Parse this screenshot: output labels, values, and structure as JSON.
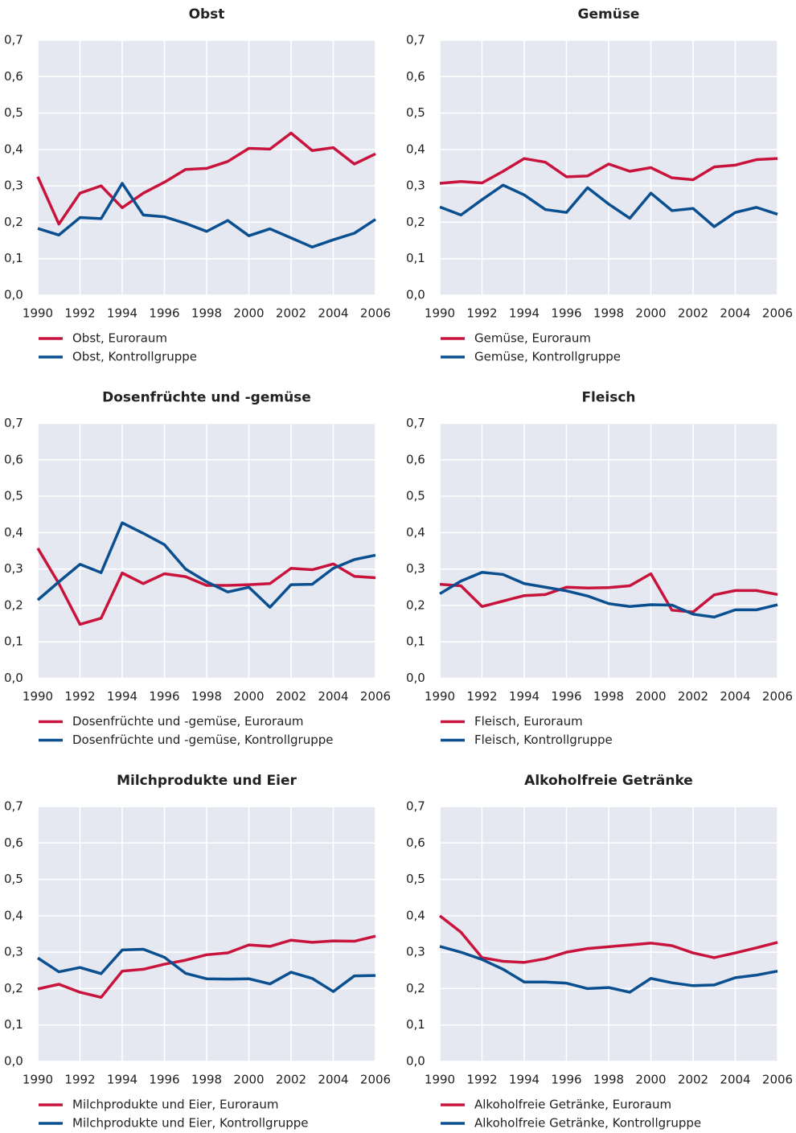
{
  "chart_data": [
    {
      "type": "line",
      "title": "Obst",
      "x": [
        1990,
        1991,
        1992,
        1993,
        1994,
        1995,
        1996,
        1997,
        1998,
        1999,
        2000,
        2001,
        2002,
        2003,
        2004,
        2005,
        2006
      ],
      "xlim": [
        1990,
        2006
      ],
      "xticks": [
        1990,
        1992,
        1994,
        1996,
        1998,
        2000,
        2002,
        2004,
        2006
      ],
      "ylim": [
        0,
        0.7
      ],
      "yticks": [
        {
          "value": 0,
          "label": "0,0"
        },
        {
          "value": 0.1,
          "label": "0,1"
        },
        {
          "value": 0.2,
          "label": "0,2"
        },
        {
          "value": 0.3,
          "label": "0,3"
        },
        {
          "value": 0.4,
          "label": "0,4"
        },
        {
          "value": 0.5,
          "label": "0,5"
        },
        {
          "value": 0.6,
          "label": "0,6"
        },
        {
          "value": 0.7,
          "label": "0,7"
        }
      ],
      "grid": true,
      "series": [
        {
          "name": "Obst, Euroraum",
          "color": "#c8143c",
          "values": [
            0.325,
            0.195,
            0.28,
            0.3,
            0.24,
            0.28,
            0.31,
            0.345,
            0.348,
            0.367,
            0.403,
            0.401,
            0.445,
            0.397,
            0.405,
            0.36,
            0.388
          ]
        },
        {
          "name": "Obst, Kontrollgruppe",
          "color": "#0a4f8f",
          "values": [
            0.183,
            0.165,
            0.213,
            0.21,
            0.307,
            0.22,
            0.215,
            0.197,
            0.175,
            0.205,
            0.163,
            0.182,
            0.157,
            0.132,
            0.152,
            0.17,
            0.208
          ]
        }
      ]
    },
    {
      "type": "line",
      "title": "Gemüse",
      "x": [
        1990,
        1991,
        1992,
        1993,
        1994,
        1995,
        1996,
        1997,
        1998,
        1999,
        2000,
        2001,
        2002,
        2003,
        2004,
        2005,
        2006
      ],
      "xlim": [
        1990,
        2006
      ],
      "xticks": [
        1990,
        1992,
        1994,
        1996,
        1998,
        2000,
        2002,
        2004,
        2006
      ],
      "ylim": [
        0,
        0.7
      ],
      "yticks": [
        {
          "value": 0,
          "label": "0,0"
        },
        {
          "value": 0.1,
          "label": "0,1"
        },
        {
          "value": 0.2,
          "label": "0,2"
        },
        {
          "value": 0.3,
          "label": "0,3"
        },
        {
          "value": 0.4,
          "label": "0,4"
        },
        {
          "value": 0.5,
          "label": "0,5"
        },
        {
          "value": 0.6,
          "label": "0,6"
        },
        {
          "value": 0.7,
          "label": "0,7"
        }
      ],
      "grid": true,
      "series": [
        {
          "name": "Gemüse, Euroraum",
          "color": "#c8143c",
          "values": [
            0.307,
            0.312,
            0.308,
            0.34,
            0.375,
            0.365,
            0.325,
            0.327,
            0.36,
            0.34,
            0.35,
            0.322,
            0.317,
            0.352,
            0.357,
            0.372,
            0.375
          ]
        },
        {
          "name": "Gemüse, Kontrollgruppe",
          "color": "#0a4f8f",
          "values": [
            0.242,
            0.22,
            0.262,
            0.302,
            0.275,
            0.235,
            0.227,
            0.295,
            0.25,
            0.211,
            0.28,
            0.232,
            0.238,
            0.188,
            0.227,
            0.241,
            0.222
          ]
        }
      ]
    },
    {
      "type": "line",
      "title": "Dosenfrüchte und -gemüse",
      "x": [
        1990,
        1991,
        1992,
        1993,
        1994,
        1995,
        1996,
        1997,
        1998,
        1999,
        2000,
        2001,
        2002,
        2003,
        2004,
        2005,
        2006
      ],
      "xlim": [
        1990,
        2006
      ],
      "xticks": [
        1990,
        1992,
        1994,
        1996,
        1998,
        2000,
        2002,
        2004,
        2006
      ],
      "ylim": [
        0,
        0.7
      ],
      "yticks": [
        {
          "value": 0,
          "label": "0,0"
        },
        {
          "value": 0.1,
          "label": "0,1"
        },
        {
          "value": 0.2,
          "label": "0,2"
        },
        {
          "value": 0.3,
          "label": "0,3"
        },
        {
          "value": 0.4,
          "label": "0,4"
        },
        {
          "value": 0.5,
          "label": "0,5"
        },
        {
          "value": 0.6,
          "label": "0,6"
        },
        {
          "value": 0.7,
          "label": "0,7"
        }
      ],
      "grid": true,
      "series": [
        {
          "name": "Dosenfrüchte und -gemüse, Euroraum",
          "color": "#c8143c",
          "values": [
            0.357,
            0.26,
            0.148,
            0.165,
            0.289,
            0.26,
            0.287,
            0.279,
            0.255,
            0.255,
            0.257,
            0.26,
            0.302,
            0.298,
            0.314,
            0.28,
            0.276
          ]
        },
        {
          "name": "Dosenfrüchte und -gemüse, Kontrollgruppe",
          "color": "#0a4f8f",
          "values": [
            0.215,
            0.265,
            0.313,
            0.29,
            0.427,
            0.398,
            0.367,
            0.3,
            0.265,
            0.237,
            0.25,
            0.195,
            0.257,
            0.258,
            0.302,
            0.326,
            0.338
          ]
        }
      ]
    },
    {
      "type": "line",
      "title": "Fleisch",
      "x": [
        1990,
        1991,
        1992,
        1993,
        1994,
        1995,
        1996,
        1997,
        1998,
        1999,
        2000,
        2001,
        2002,
        2003,
        2004,
        2005,
        2006
      ],
      "xlim": [
        1990,
        2006
      ],
      "xticks": [
        1990,
        1992,
        1994,
        1996,
        1998,
        2000,
        2002,
        2004,
        2006
      ],
      "ylim": [
        0,
        0.7
      ],
      "yticks": [
        {
          "value": 0,
          "label": "0,0"
        },
        {
          "value": 0.1,
          "label": "0,1"
        },
        {
          "value": 0.2,
          "label": "0,2"
        },
        {
          "value": 0.3,
          "label": "0,3"
        },
        {
          "value": 0.4,
          "label": "0,4"
        },
        {
          "value": 0.5,
          "label": "0,5"
        },
        {
          "value": 0.6,
          "label": "0,6"
        },
        {
          "value": 0.7,
          "label": "0,7"
        }
      ],
      "grid": true,
      "series": [
        {
          "name": "Fleisch, Euroraum",
          "color": "#c8143c",
          "values": [
            0.258,
            0.254,
            0.197,
            0.212,
            0.227,
            0.23,
            0.25,
            0.248,
            0.249,
            0.254,
            0.287,
            0.187,
            0.182,
            0.229,
            0.241,
            0.241,
            0.23
          ]
        },
        {
          "name": "Fleisch, Kontrollgruppe",
          "color": "#0a4f8f",
          "values": [
            0.232,
            0.267,
            0.291,
            0.285,
            0.26,
            0.25,
            0.24,
            0.226,
            0.205,
            0.197,
            0.202,
            0.201,
            0.176,
            0.168,
            0.188,
            0.188,
            0.202
          ]
        }
      ]
    },
    {
      "type": "line",
      "title": "Milchprodukte und Eier",
      "x": [
        1990,
        1991,
        1992,
        1993,
        1994,
        1995,
        1996,
        1997,
        1998,
        1999,
        2000,
        2001,
        2002,
        2003,
        2004,
        2005,
        2006
      ],
      "xlim": [
        1990,
        2006
      ],
      "xticks": [
        1990,
        1992,
        1994,
        1996,
        1998,
        2000,
        2002,
        2004,
        2006
      ],
      "ylim": [
        0,
        0.7
      ],
      "yticks": [
        {
          "value": 0,
          "label": "0,0"
        },
        {
          "value": 0.1,
          "label": "0,1"
        },
        {
          "value": 0.2,
          "label": "0,2"
        },
        {
          "value": 0.3,
          "label": "0,3"
        },
        {
          "value": 0.4,
          "label": "0,4"
        },
        {
          "value": 0.5,
          "label": "0,5"
        },
        {
          "value": 0.6,
          "label": "0,6"
        },
        {
          "value": 0.7,
          "label": "0,7"
        }
      ],
      "grid": true,
      "series": [
        {
          "name": "Milchprodukte und Eier, Euroraum",
          "color": "#c8143c",
          "values": [
            0.199,
            0.212,
            0.19,
            0.176,
            0.248,
            0.253,
            0.267,
            0.278,
            0.293,
            0.298,
            0.32,
            0.316,
            0.333,
            0.327,
            0.331,
            0.33,
            0.344
          ]
        },
        {
          "name": "Milchprodukte und Eier, Kontrollgruppe",
          "color": "#0a4f8f",
          "values": [
            0.284,
            0.246,
            0.258,
            0.241,
            0.306,
            0.308,
            0.286,
            0.242,
            0.227,
            0.226,
            0.227,
            0.213,
            0.245,
            0.228,
            0.192,
            0.235,
            0.236
          ]
        }
      ]
    },
    {
      "type": "line",
      "title": "Alkoholfreie Getränke",
      "x": [
        1990,
        1991,
        1992,
        1993,
        1994,
        1995,
        1996,
        1997,
        1998,
        1999,
        2000,
        2001,
        2002,
        2003,
        2004,
        2005,
        2006
      ],
      "xlim": [
        1990,
        2006
      ],
      "xticks": [
        1990,
        1992,
        1994,
        1996,
        1998,
        2000,
        2002,
        2004,
        2006
      ],
      "ylim": [
        0,
        0.7
      ],
      "yticks": [
        {
          "value": 0,
          "label": "0,0"
        },
        {
          "value": 0.1,
          "label": "0,1"
        },
        {
          "value": 0.2,
          "label": "0,2"
        },
        {
          "value": 0.3,
          "label": "0,3"
        },
        {
          "value": 0.4,
          "label": "0,4"
        },
        {
          "value": 0.5,
          "label": "0,5"
        },
        {
          "value": 0.6,
          "label": "0,6"
        },
        {
          "value": 0.7,
          "label": "0,7"
        }
      ],
      "grid": true,
      "series": [
        {
          "name": "Alkoholfreie Getränke, Euroraum",
          "color": "#c8143c",
          "values": [
            0.4,
            0.355,
            0.285,
            0.275,
            0.272,
            0.282,
            0.3,
            0.31,
            0.315,
            0.32,
            0.325,
            0.318,
            0.298,
            0.285,
            0.298,
            0.312,
            0.327
          ]
        },
        {
          "name": "Alkoholfreie Getränke, Kontrollgruppe",
          "color": "#0a4f8f",
          "values": [
            0.316,
            0.3,
            0.28,
            0.253,
            0.218,
            0.218,
            0.215,
            0.2,
            0.203,
            0.19,
            0.228,
            0.216,
            0.208,
            0.21,
            0.23,
            0.237,
            0.248
          ]
        }
      ]
    }
  ]
}
